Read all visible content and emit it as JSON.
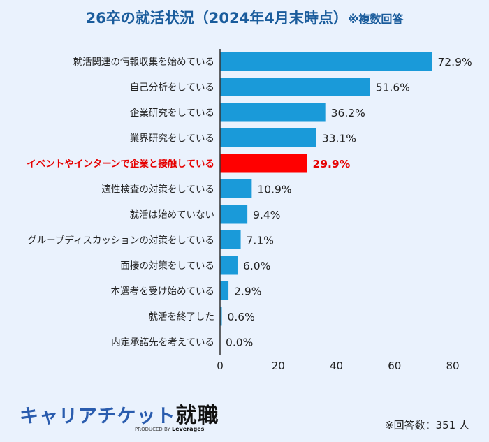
{
  "chart_data": {
    "type": "bar",
    "orientation": "horizontal",
    "title": "26卒の就活状況（2024年4月末時点）",
    "title_note": "※複数回答",
    "categories": [
      "就活関連の情報収集を始めている",
      "自己分析をしている",
      "企業研究をしている",
      "業界研究をしている",
      "イベントやインターンで企業と接触している",
      "適性検査の対策をしている",
      "就活は始めていない",
      "グループディスカッションの対策をしている",
      "面接の対策をしている",
      "本選考を受け始めている",
      "就活を終了した",
      "内定承諾先を考えている"
    ],
    "values": [
      72.9,
      51.6,
      36.2,
      33.1,
      29.9,
      10.9,
      9.4,
      7.1,
      6.0,
      2.9,
      0.6,
      0.0
    ],
    "value_labels": [
      "72.9%",
      "51.6%",
      "36.2%",
      "33.1%",
      "29.9%",
      "10.9%",
      "9.4%",
      "7.1%",
      "6.0%",
      "2.9%",
      "0.6%",
      "0.0%"
    ],
    "highlight_index": 4,
    "xlim": [
      0,
      80
    ],
    "xticks": [
      "0",
      "20",
      "40",
      "60",
      "80"
    ],
    "grid": false,
    "colors": {
      "bar": "#1a9ad9",
      "highlight": "#ff0000",
      "title": "#1a5c9c"
    }
  },
  "footer": {
    "respondents": "※回答数：351 人"
  },
  "logo": {
    "main": "キャリアチケット",
    "main_bold": "就職",
    "produced_by": "PRODUCED BY",
    "company": "Leverages"
  }
}
